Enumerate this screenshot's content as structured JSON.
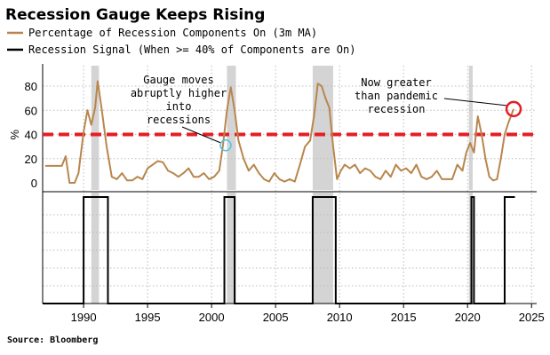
{
  "title": "Recession Gauge Keeps Rising",
  "legend": [
    {
      "label": "Percentage of Recession Components On (3m MA)",
      "color": "#b8864d"
    },
    {
      "label": "Recession Signal (When >= 40% of Components are On)",
      "color": "#000000"
    }
  ],
  "source": "Source: Bloomberg",
  "annotations": [
    {
      "lines": [
        "Gauge moves",
        "abruptly higher",
        "into",
        "recessions"
      ],
      "points_to": {
        "x": 2001.1,
        "y": 31
      }
    },
    {
      "lines": [
        "Now greater",
        "than pandemic",
        "recession"
      ],
      "points_to": {
        "x": 2023.6,
        "y": 61
      }
    }
  ],
  "chart_data": [
    {
      "type": "line",
      "title": "",
      "ylabel": "%",
      "xlim": [
        1986.8,
        2025.4
      ],
      "ylim": [
        0,
        90
      ],
      "yticks": [
        0,
        20,
        40,
        60,
        80
      ],
      "threshold": {
        "value": 40,
        "color": "#e41e26",
        "style": "dashed"
      },
      "recessions": [
        [
          1990.6,
          1991.2
        ],
        [
          2001.2,
          2001.9
        ],
        [
          2007.9,
          2009.5
        ],
        [
          2020.1,
          2020.4
        ]
      ],
      "series": [
        {
          "name": "Percentage of Recession Components On (3m MA)",
          "color": "#b8864d",
          "x": [
            1987.0,
            1988.3,
            1988.6,
            1988.9,
            1989.3,
            1989.6,
            1990.0,
            1990.3,
            1990.6,
            1990.9,
            1991.1,
            1991.4,
            1991.8,
            1992.2,
            1992.6,
            1993.0,
            1993.4,
            1993.8,
            1994.2,
            1994.6,
            1995.0,
            1995.4,
            1995.8,
            1996.2,
            1996.6,
            1997.0,
            1997.4,
            1997.8,
            1998.2,
            1998.6,
            1999.0,
            1999.4,
            1999.8,
            2000.2,
            2000.6,
            2000.9,
            2001.2,
            2001.5,
            2001.8,
            2002.1,
            2002.5,
            2002.9,
            2003.3,
            2003.7,
            2004.1,
            2004.5,
            2004.9,
            2005.3,
            2005.7,
            2006.1,
            2006.5,
            2006.9,
            2007.3,
            2007.7,
            2008.0,
            2008.3,
            2008.6,
            2008.9,
            2009.2,
            2009.5,
            2009.8,
            2010.1,
            2010.4,
            2010.8,
            2011.2,
            2011.6,
            2012.0,
            2012.4,
            2012.8,
            2013.2,
            2013.6,
            2014.0,
            2014.4,
            2014.8,
            2015.2,
            2015.6,
            2016.0,
            2016.4,
            2016.8,
            2017.2,
            2017.6,
            2018.0,
            2018.4,
            2018.8,
            2019.2,
            2019.6,
            2019.9,
            2020.2,
            2020.5,
            2020.8,
            2021.1,
            2021.4,
            2021.7,
            2022.0,
            2022.3,
            2022.6,
            2022.9,
            2023.2,
            2023.6
          ],
          "y": [
            14,
            14,
            22,
            0,
            0,
            8,
            42,
            60,
            48,
            62,
            84,
            62,
            30,
            5,
            3,
            8,
            2,
            2,
            5,
            3,
            12,
            15,
            18,
            17,
            10,
            8,
            5,
            8,
            12,
            5,
            5,
            8,
            3,
            5,
            10,
            32,
            60,
            79,
            60,
            35,
            20,
            10,
            15,
            8,
            3,
            1,
            8,
            3,
            1,
            3,
            1,
            15,
            30,
            35,
            55,
            82,
            80,
            70,
            62,
            30,
            3,
            10,
            15,
            12,
            15,
            8,
            12,
            10,
            5,
            3,
            10,
            5,
            15,
            10,
            12,
            8,
            15,
            5,
            3,
            5,
            10,
            3,
            3,
            3,
            15,
            10,
            25,
            33,
            25,
            55,
            40,
            20,
            5,
            2,
            3,
            20,
            40,
            50,
            61
          ]
        }
      ]
    },
    {
      "type": "line",
      "title": "",
      "xlim": [
        1986.8,
        2025.4
      ],
      "ylim": [
        0,
        1
      ],
      "xticks": [
        1990,
        1995,
        2000,
        2005,
        2010,
        2015,
        2020,
        2025
      ],
      "series": [
        {
          "name": "Recession Signal (When >= 40% of Components are On)",
          "color": "#000000",
          "steps": [
            [
              1986.8,
              0
            ],
            [
              1990.0,
              1
            ],
            [
              1991.9,
              0
            ],
            [
              2001.0,
              1
            ],
            [
              2001.8,
              0
            ],
            [
              2007.9,
              1
            ],
            [
              2009.7,
              0
            ],
            [
              2020.3,
              1
            ],
            [
              2020.5,
              0
            ],
            [
              2022.9,
              1
            ]
          ]
        }
      ]
    }
  ]
}
